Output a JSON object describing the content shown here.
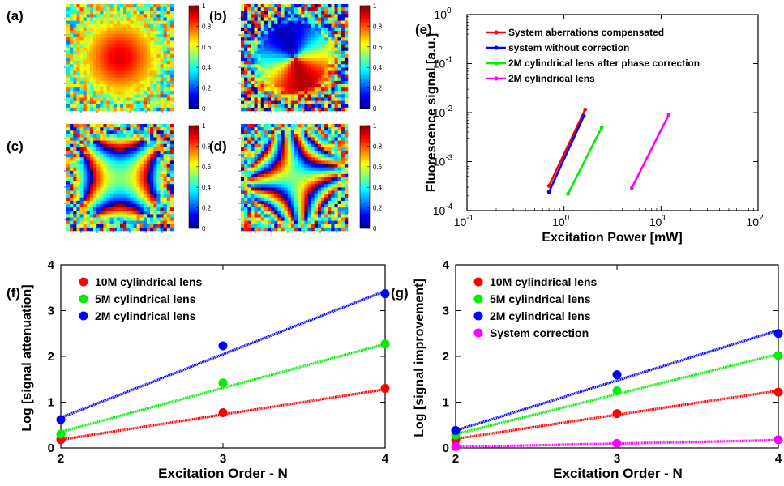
{
  "colorbar": {
    "ticks": [
      "1",
      "0.8",
      "0.6",
      "0.4",
      "0.2",
      "0"
    ],
    "colors": [
      "#00008f",
      "#0000ff",
      "#0080ff",
      "#00ffff",
      "#80ff80",
      "#ffff00",
      "#ff8000",
      "#ff0000",
      "#800000"
    ]
  },
  "maps": [
    {
      "tag": "(a)",
      "pattern": "gaussian"
    },
    {
      "tag": "(b)",
      "pattern": "two-lobe"
    },
    {
      "tag": "(c)",
      "pattern": "astig-x"
    },
    {
      "tag": "(d)",
      "pattern": "astig-tilted"
    }
  ],
  "chart_data": [
    {
      "panel": "(e)",
      "type": "line",
      "xlabel": "Excitation Power [mW]",
      "ylabel": "Fluorescence signal [a.u.]",
      "xscale": "log",
      "yscale": "log",
      "xlim": [
        0.1,
        100
      ],
      "ylim": [
        0.0001,
        1
      ],
      "xticks": [
        {
          "v": 0.1,
          "b": "10",
          "e": "-1"
        },
        {
          "v": 1,
          "b": "10",
          "e": "0"
        },
        {
          "v": 10,
          "b": "10",
          "e": "1"
        },
        {
          "v": 100,
          "b": "10",
          "e": "2"
        }
      ],
      "yticks": [
        {
          "v": 0.0001,
          "b": "10",
          "e": "-4"
        },
        {
          "v": 0.001,
          "b": "10",
          "e": "-3"
        },
        {
          "v": 0.01,
          "b": "10",
          "e": "-2"
        },
        {
          "v": 0.1,
          "b": "10",
          "e": "-1"
        },
        {
          "v": 1,
          "b": "10",
          "e": "0"
        }
      ],
      "legend_position": "top-left",
      "series": [
        {
          "name": "System aberrations compensated",
          "color": "#ff0000",
          "x": [
            0.7,
            1.65
          ],
          "y": [
            0.00032,
            0.0115
          ]
        },
        {
          "name": "system without correction",
          "color": "#0000ff",
          "x": [
            0.7,
            1.6
          ],
          "y": [
            0.00024,
            0.0085
          ]
        },
        {
          "name": "2M cylindrical lens after phase correction",
          "color": "#00ee00",
          "x": [
            1.1,
            2.45
          ],
          "y": [
            0.00022,
            0.005
          ]
        },
        {
          "name": "2M cylindrical lens",
          "color": "#ff00ff",
          "x": [
            5.0,
            12.0
          ],
          "y": [
            0.00029,
            0.009
          ]
        }
      ]
    },
    {
      "panel": "(f)",
      "type": "scatter",
      "xlabel": "Excitation Order - N",
      "ylabel": "Log [signal attenuation]",
      "xlim": [
        2,
        4
      ],
      "ylim": [
        0,
        4
      ],
      "xticks": [
        "2",
        "3",
        "4"
      ],
      "yticks": [
        "0",
        "1",
        "2",
        "3",
        "4"
      ],
      "legend_position": "top-left",
      "series": [
        {
          "name": "10M cylindrical lens",
          "color": "#ff0000",
          "x": [
            2,
            3,
            4
          ],
          "y": [
            0.18,
            0.77,
            1.3
          ],
          "fit": [
            0.18,
            1.28
          ]
        },
        {
          "name": "5M cylindrical lens",
          "color": "#00ee00",
          "x": [
            2,
            3,
            4
          ],
          "y": [
            0.3,
            1.42,
            2.27
          ],
          "fit": [
            0.35,
            2.27
          ]
        },
        {
          "name": "2M cylindrical lens",
          "color": "#0000ff",
          "x": [
            2,
            3,
            4
          ],
          "y": [
            0.62,
            2.23,
            3.37
          ],
          "fit": [
            0.66,
            3.43
          ]
        }
      ]
    },
    {
      "panel": "(g)",
      "type": "scatter",
      "xlabel": "Excitation Order - N",
      "ylabel": "Log [signal improvement]",
      "xlim": [
        2,
        4
      ],
      "ylim": [
        0,
        4
      ],
      "xticks": [
        "2",
        "3",
        "4"
      ],
      "yticks": [
        "0",
        "1",
        "2",
        "3",
        "4"
      ],
      "legend_position": "top-left",
      "series": [
        {
          "name": "10M cylindrical lens",
          "color": "#ff0000",
          "x": [
            2,
            3,
            4
          ],
          "y": [
            0.17,
            0.75,
            1.22
          ],
          "fit": [
            0.2,
            1.25
          ]
        },
        {
          "name": "5M cylindrical lens",
          "color": "#00ee00",
          "x": [
            2,
            3,
            4
          ],
          "y": [
            0.28,
            1.25,
            2.02
          ],
          "fit": [
            0.3,
            2.05
          ]
        },
        {
          "name": "2M cylindrical lens",
          "color": "#0000ff",
          "x": [
            2,
            3,
            4
          ],
          "y": [
            0.38,
            1.6,
            2.5
          ],
          "fit": [
            0.38,
            2.57
          ]
        },
        {
          "name": "System correction",
          "color": "#ff00ff",
          "x": [
            2,
            3,
            4
          ],
          "y": [
            0.03,
            0.1,
            0.18
          ],
          "fit": [
            0.02,
            0.17
          ]
        }
      ]
    }
  ]
}
